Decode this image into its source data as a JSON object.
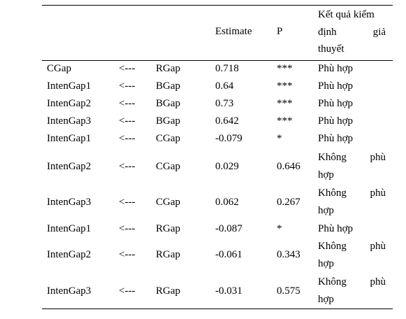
{
  "table": {
    "headers": {
      "estimate": "Estimate",
      "p": "P",
      "result_line1": "Kết quả kiểm",
      "result_line2_left": "định",
      "result_line2_right": "giả",
      "result_line3": "thuyết"
    },
    "rows": [
      {
        "dv": "CGap",
        "arrow": "<---",
        "iv": "RGap",
        "estimate": "0.718",
        "p": "***",
        "result": "Phù hợp"
      },
      {
        "dv": "IntenGap1",
        "arrow": "<---",
        "iv": "BGap",
        "estimate": "0.64",
        "p": "***",
        "result": "Phù hợp"
      },
      {
        "dv": "IntenGap2",
        "arrow": "<---",
        "iv": "BGap",
        "estimate": "0.73",
        "p": "***",
        "result": "Phù hợp"
      },
      {
        "dv": "IntenGap3",
        "arrow": "<---",
        "iv": "BGap",
        "estimate": "0.642",
        "p": "***",
        "result": "Phù hợp"
      },
      {
        "dv": "IntenGap1",
        "arrow": "<---",
        "iv": "CGap",
        "estimate": "-0.079",
        "p": "*",
        "result": "Phù hợp"
      },
      {
        "dv": "IntenGap2",
        "arrow": "<---",
        "iv": "CGap",
        "estimate": "0.029",
        "p": "0.646",
        "result_a": "Không",
        "result_b": "phù",
        "result_c": "hợp"
      },
      {
        "dv": "IntenGap3",
        "arrow": "<---",
        "iv": "CGap",
        "estimate": "0.062",
        "p": "0.267",
        "result_a": "Không",
        "result_b": "phù",
        "result_c": "hợp"
      },
      {
        "dv": "IntenGap1",
        "arrow": "<---",
        "iv": "RGap",
        "estimate": "-0.087",
        "p": "*",
        "result": "Phù hợp"
      },
      {
        "dv": "IntenGap2",
        "arrow": "<---",
        "iv": "RGap",
        "estimate": "-0.061",
        "p": "0.343",
        "result_a": "Không",
        "result_b": "phù",
        "result_c": "hợp"
      },
      {
        "dv": "IntenGap3",
        "arrow": "<---",
        "iv": "RGap",
        "estimate": "-0.031",
        "p": "0.575",
        "result_a": "Không",
        "result_b": "phù",
        "result_c": "hợp"
      }
    ]
  }
}
